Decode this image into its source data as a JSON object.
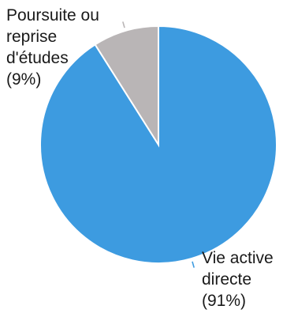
{
  "chart_data": {
    "type": "pie",
    "title": "",
    "slices": [
      {
        "label_lines": [
          "Vie active",
          "directe",
          "(91%)"
        ],
        "value": 91,
        "color": "#3d9be0"
      },
      {
        "label_lines": [
          "Poursuite ou",
          "reprise",
          "d'études",
          "(9%)"
        ],
        "value": 9,
        "color": "#b9b5b6"
      }
    ],
    "start": "12 o'clock",
    "direction": "clockwise",
    "legend": "none (direct labels)",
    "slice_border_color": "#ffffff",
    "leader_line_colors": [
      "#3d9be0",
      "#b9b5b6"
    ]
  }
}
